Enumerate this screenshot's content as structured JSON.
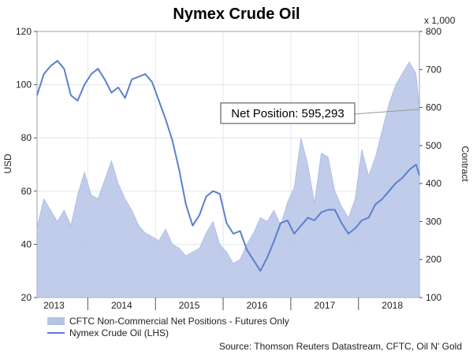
{
  "chart_data": {
    "type": "line",
    "title": "Nymex Crude Oil",
    "left_axis": {
      "label": "USD",
      "ylim": [
        20,
        120
      ],
      "ticks": [
        "20",
        "40",
        "60",
        "80",
        "100",
        "120"
      ]
    },
    "right_axis": {
      "label": "Contract",
      "multiplier_note": "x 1,000",
      "ylim": [
        100,
        800
      ],
      "ticks": [
        "100",
        "200",
        "300",
        "400",
        "500",
        "600",
        "700",
        "800"
      ]
    },
    "x_axis": {
      "range": [
        2012.75,
        2018.4
      ],
      "ticks": [
        "2013",
        "2014",
        "2015",
        "2016",
        "2017",
        "2018"
      ]
    },
    "grid": true,
    "legend_position": "bottom-left",
    "annotation": {
      "text": "Net Position: 595,293",
      "value": 595.293
    },
    "source": "Source: Thomson Reuters Datastream, CFTC, Oil N' Gold",
    "series": [
      {
        "name": "CFTC Non-Commercial Net Positions - Futures Only",
        "kind": "area",
        "axis": "right",
        "color": "#b5c3e6",
        "x": [
          2012.75,
          2012.85,
          2012.95,
          2013.05,
          2013.15,
          2013.25,
          2013.35,
          2013.45,
          2013.55,
          2013.65,
          2013.75,
          2013.85,
          2013.95,
          2014.05,
          2014.15,
          2014.25,
          2014.35,
          2014.45,
          2014.55,
          2014.65,
          2014.75,
          2014.85,
          2014.95,
          2015.05,
          2015.15,
          2015.25,
          2015.35,
          2015.45,
          2015.55,
          2015.65,
          2015.75,
          2015.85,
          2015.95,
          2016.05,
          2016.15,
          2016.25,
          2016.35,
          2016.45,
          2016.55,
          2016.65,
          2016.75,
          2016.85,
          2016.95,
          2017.05,
          2017.15,
          2017.25,
          2017.35,
          2017.45,
          2017.55,
          2017.65,
          2017.75,
          2017.85,
          2017.95,
          2018.05,
          2018.15,
          2018.25,
          2018.35,
          2018.4
        ],
        "values": [
          285,
          360,
          330,
          300,
          330,
          290,
          370,
          430,
          370,
          360,
          410,
          460,
          400,
          360,
          330,
          290,
          270,
          260,
          250,
          280,
          240,
          230,
          210,
          220,
          230,
          270,
          300,
          240,
          220,
          190,
          200,
          240,
          270,
          310,
          300,
          330,
          290,
          350,
          390,
          520,
          450,
          350,
          480,
          470,
          380,
          340,
          310,
          360,
          490,
          420,
          470,
          540,
          610,
          660,
          690,
          720,
          690,
          600
        ]
      },
      {
        "name": "Nymex Crude Oil (LHS)",
        "kind": "line",
        "axis": "left",
        "color": "#5b7fcf",
        "x": [
          2012.75,
          2012.85,
          2012.95,
          2013.05,
          2013.15,
          2013.25,
          2013.35,
          2013.45,
          2013.55,
          2013.65,
          2013.75,
          2013.85,
          2013.95,
          2014.05,
          2014.15,
          2014.25,
          2014.35,
          2014.45,
          2014.55,
          2014.65,
          2014.75,
          2014.85,
          2014.95,
          2015.05,
          2015.15,
          2015.25,
          2015.35,
          2015.45,
          2015.55,
          2015.65,
          2015.75,
          2015.85,
          2015.95,
          2016.05,
          2016.15,
          2016.25,
          2016.35,
          2016.45,
          2016.55,
          2016.65,
          2016.75,
          2016.85,
          2016.95,
          2017.05,
          2017.15,
          2017.25,
          2017.35,
          2017.45,
          2017.55,
          2017.65,
          2017.75,
          2017.85,
          2017.95,
          2018.05,
          2018.15,
          2018.25,
          2018.35,
          2018.4
        ],
        "values": [
          96,
          104,
          107,
          109,
          106,
          96,
          94,
          100,
          104,
          106,
          102,
          97,
          99,
          95,
          102,
          103,
          104,
          101,
          94,
          87,
          79,
          68,
          55,
          47,
          51,
          58,
          60,
          59,
          48,
          44,
          45,
          38,
          34,
          30,
          35,
          41,
          48,
          49,
          44,
          47,
          50,
          49,
          52,
          53,
          53,
          48,
          44,
          46,
          49,
          50,
          55,
          57,
          60,
          63,
          65,
          68,
          70,
          66
        ]
      }
    ]
  }
}
